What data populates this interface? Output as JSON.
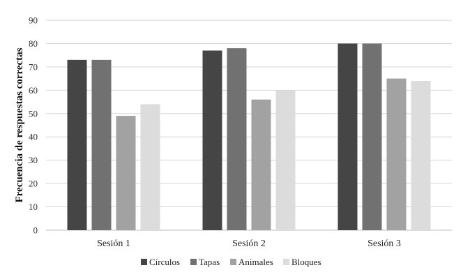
{
  "chart_data": {
    "type": "bar",
    "title": "",
    "xlabel": "",
    "ylabel": "Frecuencia de respuestas correctas",
    "ylim": [
      0,
      90
    ],
    "yticks": [
      0,
      10,
      20,
      30,
      40,
      50,
      60,
      70,
      80,
      90
    ],
    "categories": [
      "Sesión 1",
      "Sesión 2",
      "Sesión 3"
    ],
    "series": [
      {
        "name": "Círculos",
        "color": "#454545",
        "values": [
          73,
          77,
          80
        ]
      },
      {
        "name": "Tapas",
        "color": "#717171",
        "values": [
          73,
          78,
          80
        ]
      },
      {
        "name": "Animales",
        "color": "#a2a2a2",
        "values": [
          49,
          56,
          65
        ]
      },
      {
        "name": "Bloques",
        "color": "#dcdcdc",
        "values": [
          54,
          60,
          64
        ]
      }
    ],
    "grid": true,
    "legend": "bottom"
  }
}
